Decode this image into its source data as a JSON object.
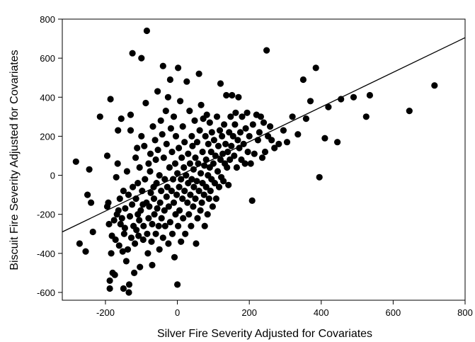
{
  "chart_data": {
    "type": "scatter",
    "xlabel": "Silver Fire Severity Adjusted for Covariates",
    "ylabel": "Biscuit Fire Severity Adjusted for Covariates",
    "xlim": [
      -320,
      800
    ],
    "ylim": [
      -640,
      800
    ],
    "x_ticks": [
      -200,
      0,
      200,
      400,
      600,
      800
    ],
    "y_ticks": [
      -600,
      -400,
      -200,
      0,
      200,
      400,
      600,
      800
    ],
    "x_tick_labels": [
      "-200",
      "0",
      "200",
      "400",
      "600",
      "800"
    ],
    "y_tick_labels": [
      "-600",
      "-400",
      "-200",
      "0",
      "200",
      "400",
      "600",
      "800"
    ],
    "grid": false,
    "marker_color": "#000000",
    "regression_line": {
      "x": [
        -320,
        800
      ],
      "y": [
        -290,
        705
      ]
    },
    "points": [
      [
        -282,
        70
      ],
      [
        -272,
        -350
      ],
      [
        -255,
        -390
      ],
      [
        -250,
        -100
      ],
      [
        -245,
        30
      ],
      [
        -240,
        -140
      ],
      [
        -235,
        -290
      ],
      [
        -215,
        300
      ],
      [
        -195,
        100
      ],
      [
        -195,
        -160
      ],
      [
        -192,
        -140
      ],
      [
        -190,
        -250
      ],
      [
        -188,
        -540
      ],
      [
        -188,
        -580
      ],
      [
        -186,
        390
      ],
      [
        -184,
        -400
      ],
      [
        -182,
        -310
      ],
      [
        -180,
        -500
      ],
      [
        -176,
        -230
      ],
      [
        -174,
        -510
      ],
      [
        -172,
        -330
      ],
      [
        -170,
        -10
      ],
      [
        -168,
        -200
      ],
      [
        -166,
        60
      ],
      [
        -165,
        230
      ],
      [
        -164,
        -180
      ],
      [
        -162,
        -360
      ],
      [
        -160,
        -120
      ],
      [
        -158,
        -250
      ],
      [
        -156,
        290
      ],
      [
        -154,
        -220
      ],
      [
        -152,
        -390
      ],
      [
        -150,
        -80
      ],
      [
        -150,
        -580
      ],
      [
        -148,
        -300
      ],
      [
        -146,
        -270
      ],
      [
        -145,
        -170
      ],
      [
        -142,
        -440
      ],
      [
        -140,
        20
      ],
      [
        -138,
        -380
      ],
      [
        -136,
        -100
      ],
      [
        -135,
        -600
      ],
      [
        -134,
        -560
      ],
      [
        -132,
        -210
      ],
      [
        -130,
        310
      ],
      [
        -130,
        230
      ],
      [
        -128,
        -320
      ],
      [
        -126,
        -150
      ],
      [
        -125,
        625
      ],
      [
        -124,
        -60
      ],
      [
        -122,
        -260
      ],
      [
        -120,
        -500
      ],
      [
        -118,
        -350
      ],
      [
        -116,
        90
      ],
      [
        -115,
        -120
      ],
      [
        -114,
        -280
      ],
      [
        -112,
        140
      ],
      [
        -110,
        -40
      ],
      [
        -110,
        -200
      ],
      [
        -108,
        -310
      ],
      [
        -106,
        -230
      ],
      [
        -105,
        40
      ],
      [
        -104,
        -470
      ],
      [
        -102,
        -180
      ],
      [
        -100,
        600
      ],
      [
        -100,
        200
      ],
      [
        -98,
        -80
      ],
      [
        -96,
        -150
      ],
      [
        -95,
        -330
      ],
      [
        -94,
        -260
      ],
      [
        -92,
        150
      ],
      [
        -90,
        -20
      ],
      [
        -88,
        370
      ],
      [
        -86,
        -140
      ],
      [
        -85,
        740
      ],
      [
        -84,
        -300
      ],
      [
        -82,
        -400
      ],
      [
        -80,
        -220
      ],
      [
        -80,
        60
      ],
      [
        -78,
        -160
      ],
      [
        -76,
        20
      ],
      [
        -75,
        110
      ],
      [
        -74,
        -90
      ],
      [
        -72,
        -340
      ],
      [
        -70,
        -250
      ],
      [
        -70,
        -460
      ],
      [
        -68,
        250
      ],
      [
        -66,
        -60
      ],
      [
        -65,
        -120
      ],
      [
        -64,
        -200
      ],
      [
        -62,
        180
      ],
      [
        -60,
        -300
      ],
      [
        -60,
        80
      ],
      [
        -58,
        -40
      ],
      [
        -56,
        -170
      ],
      [
        -55,
        430
      ],
      [
        -54,
        130
      ],
      [
        -52,
        -260
      ],
      [
        -50,
        0
      ],
      [
        -50,
        -380
      ],
      [
        -48,
        -140
      ],
      [
        -46,
        280
      ],
      [
        -45,
        -80
      ],
      [
        -44,
        -220
      ],
      [
        -42,
        210
      ],
      [
        -40,
        560
      ],
      [
        -40,
        -320
      ],
      [
        -38,
        90
      ],
      [
        -36,
        -180
      ],
      [
        -35,
        -20
      ],
      [
        -34,
        -260
      ],
      [
        -32,
        330
      ],
      [
        -30,
        160
      ],
      [
        -30,
        -110
      ],
      [
        -28,
        -60
      ],
      [
        -26,
        400
      ],
      [
        -25,
        -350
      ],
      [
        -24,
        -160
      ],
      [
        -22,
        40
      ],
      [
        -20,
        490
      ],
      [
        -20,
        -240
      ],
      [
        -18,
        240
      ],
      [
        -16,
        -80
      ],
      [
        -15,
        120
      ],
      [
        -14,
        -300
      ],
      [
        -12,
        -20
      ],
      [
        -10,
        300
      ],
      [
        -10,
        -140
      ],
      [
        -8,
        -420
      ],
      [
        -6,
        60
      ],
      [
        -5,
        -200
      ],
      [
        -4,
        200
      ],
      [
        -2,
        -100
      ],
      [
        0,
        -560
      ],
      [
        0,
        10
      ],
      [
        2,
        550
      ],
      [
        2,
        -260
      ],
      [
        4,
        140
      ],
      [
        5,
        -60
      ],
      [
        6,
        -180
      ],
      [
        8,
        380
      ],
      [
        10,
        -20
      ],
      [
        10,
        -340
      ],
      [
        12,
        90
      ],
      [
        14,
        -120
      ],
      [
        15,
        250
      ],
      [
        16,
        -220
      ],
      [
        18,
        40
      ],
      [
        20,
        -80
      ],
      [
        20,
        170
      ],
      [
        22,
        -300
      ],
      [
        24,
        0
      ],
      [
        26,
        480
      ],
      [
        28,
        -140
      ],
      [
        30,
        110
      ],
      [
        30,
        -40
      ],
      [
        32,
        -200
      ],
      [
        34,
        330
      ],
      [
        35,
        60
      ],
      [
        36,
        -100
      ],
      [
        38,
        -260
      ],
      [
        40,
        200
      ],
      [
        40,
        -20
      ],
      [
        42,
        150
      ],
      [
        44,
        -160
      ],
      [
        45,
        30
      ],
      [
        46,
        -60
      ],
      [
        48,
        280
      ],
      [
        50,
        -120
      ],
      [
        50,
        90
      ],
      [
        52,
        -350
      ],
      [
        54,
        -30
      ],
      [
        55,
        170
      ],
      [
        56,
        -220
      ],
      [
        58,
        60
      ],
      [
        60,
        520
      ],
      [
        60,
        -80
      ],
      [
        62,
        230
      ],
      [
        64,
        -180
      ],
      [
        65,
        10
      ],
      [
        66,
        360
      ],
      [
        68,
        -140
      ],
      [
        70,
        120
      ],
      [
        70,
        -40
      ],
      [
        72,
        290
      ],
      [
        74,
        -100
      ],
      [
        75,
        50
      ],
      [
        76,
        -260
      ],
      [
        78,
        200
      ],
      [
        80,
        -60
      ],
      [
        80,
        80
      ],
      [
        82,
        310
      ],
      [
        84,
        -200
      ],
      [
        85,
        0
      ],
      [
        86,
        160
      ],
      [
        88,
        -120
      ],
      [
        90,
        40
      ],
      [
        90,
        270
      ],
      [
        92,
        -80
      ],
      [
        94,
        120
      ],
      [
        95,
        -20
      ],
      [
        96,
        220
      ],
      [
        98,
        -160
      ],
      [
        100,
        60
      ],
      [
        102,
        180
      ],
      [
        104,
        -40
      ],
      [
        106,
        100
      ],
      [
        108,
        -120
      ],
      [
        110,
        300
      ],
      [
        112,
        20
      ],
      [
        114,
        150
      ],
      [
        116,
        -60
      ],
      [
        118,
        230
      ],
      [
        120,
        470
      ],
      [
        120,
        80
      ],
      [
        122,
        -10
      ],
      [
        124,
        200
      ],
      [
        126,
        110
      ],
      [
        128,
        -30
      ],
      [
        130,
        260
      ],
      [
        132,
        60
      ],
      [
        134,
        160
      ],
      [
        136,
        410
      ],
      [
        138,
        40
      ],
      [
        140,
        120
      ],
      [
        142,
        -50
      ],
      [
        144,
        220
      ],
      [
        146,
        80
      ],
      [
        148,
        300
      ],
      [
        150,
        150
      ],
      [
        152,
        410
      ],
      [
        155,
        200
      ],
      [
        158,
        100
      ],
      [
        160,
        260
      ],
      [
        162,
        320
      ],
      [
        165,
        40
      ],
      [
        168,
        180
      ],
      [
        170,
        400
      ],
      [
        172,
        140
      ],
      [
        175,
        220
      ],
      [
        178,
        80
      ],
      [
        180,
        300
      ],
      [
        184,
        160
      ],
      [
        188,
        60
      ],
      [
        190,
        240
      ],
      [
        194,
        320
      ],
      [
        196,
        120
      ],
      [
        200,
        200
      ],
      [
        204,
        60
      ],
      [
        208,
        -130
      ],
      [
        210,
        260
      ],
      [
        214,
        110
      ],
      [
        220,
        310
      ],
      [
        224,
        180
      ],
      [
        228,
        220
      ],
      [
        232,
        300
      ],
      [
        236,
        90
      ],
      [
        240,
        270
      ],
      [
        244,
        120
      ],
      [
        248,
        640
      ],
      [
        252,
        200
      ],
      [
        258,
        250
      ],
      [
        262,
        180
      ],
      [
        270,
        140
      ],
      [
        282,
        160
      ],
      [
        295,
        230
      ],
      [
        305,
        170
      ],
      [
        320,
        300
      ],
      [
        335,
        210
      ],
      [
        350,
        490
      ],
      [
        358,
        290
      ],
      [
        370,
        380
      ],
      [
        385,
        550
      ],
      [
        395,
        -10
      ],
      [
        410,
        190
      ],
      [
        420,
        350
      ],
      [
        445,
        170
      ],
      [
        455,
        390
      ],
      [
        490,
        400
      ],
      [
        525,
        300
      ],
      [
        535,
        410
      ],
      [
        645,
        330
      ],
      [
        715,
        460
      ]
    ]
  }
}
